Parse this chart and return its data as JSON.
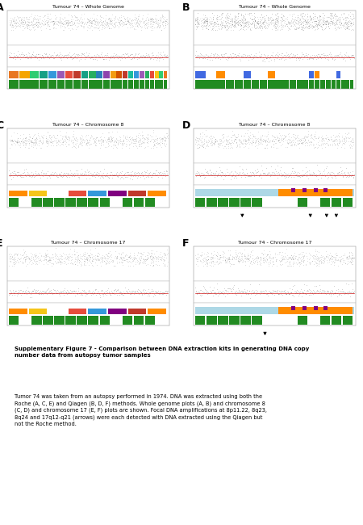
{
  "title_A": "Tumour 74 – Whole Genome",
  "title_B": "Tumour 74 – Whole Genome",
  "title_C": "Tumour 74 – Chromosome 8",
  "title_D": "Tumour 74 – Chromosome 8",
  "title_E": "Tumour 74 – Chromosome 17",
  "title_F": "Tumour 74 - Chromosome 17",
  "caption_bold": "Supplementary Figure 7 - Comparison between DNA extraction kits in generating DNA copy\nnumber data from autopsy tumor samples",
  "caption_normal": "Tumor 74 was taken from an autopsy performed in 1974. DNA was extracted using both the\nRoche (A, C, E) and Qiagen (B, D, F) methods. Whole genome plots (A, B) and chromosome 8\n(C, D) and chromosome 17 (E, F) plots are shown. Focal DNA amplifications at 8p11.22, 8q23,\n8q24 and 17q12-q21 (arrows) were each detected with DNA extracted using the Qiagen but\nnot the Roche method.",
  "bg_color": "#ffffff",
  "red_line_color": "#cc0000",
  "green_bar_color": "#228b22",
  "light_blue_color": "#add8e6",
  "orange_color": "#ff8c00",
  "purple_color": "#800080",
  "dark_color": "#111111",
  "arrows_D": [
    0.3,
    0.72,
    0.82,
    0.88
  ],
  "arrows_F": [
    0.44
  ]
}
